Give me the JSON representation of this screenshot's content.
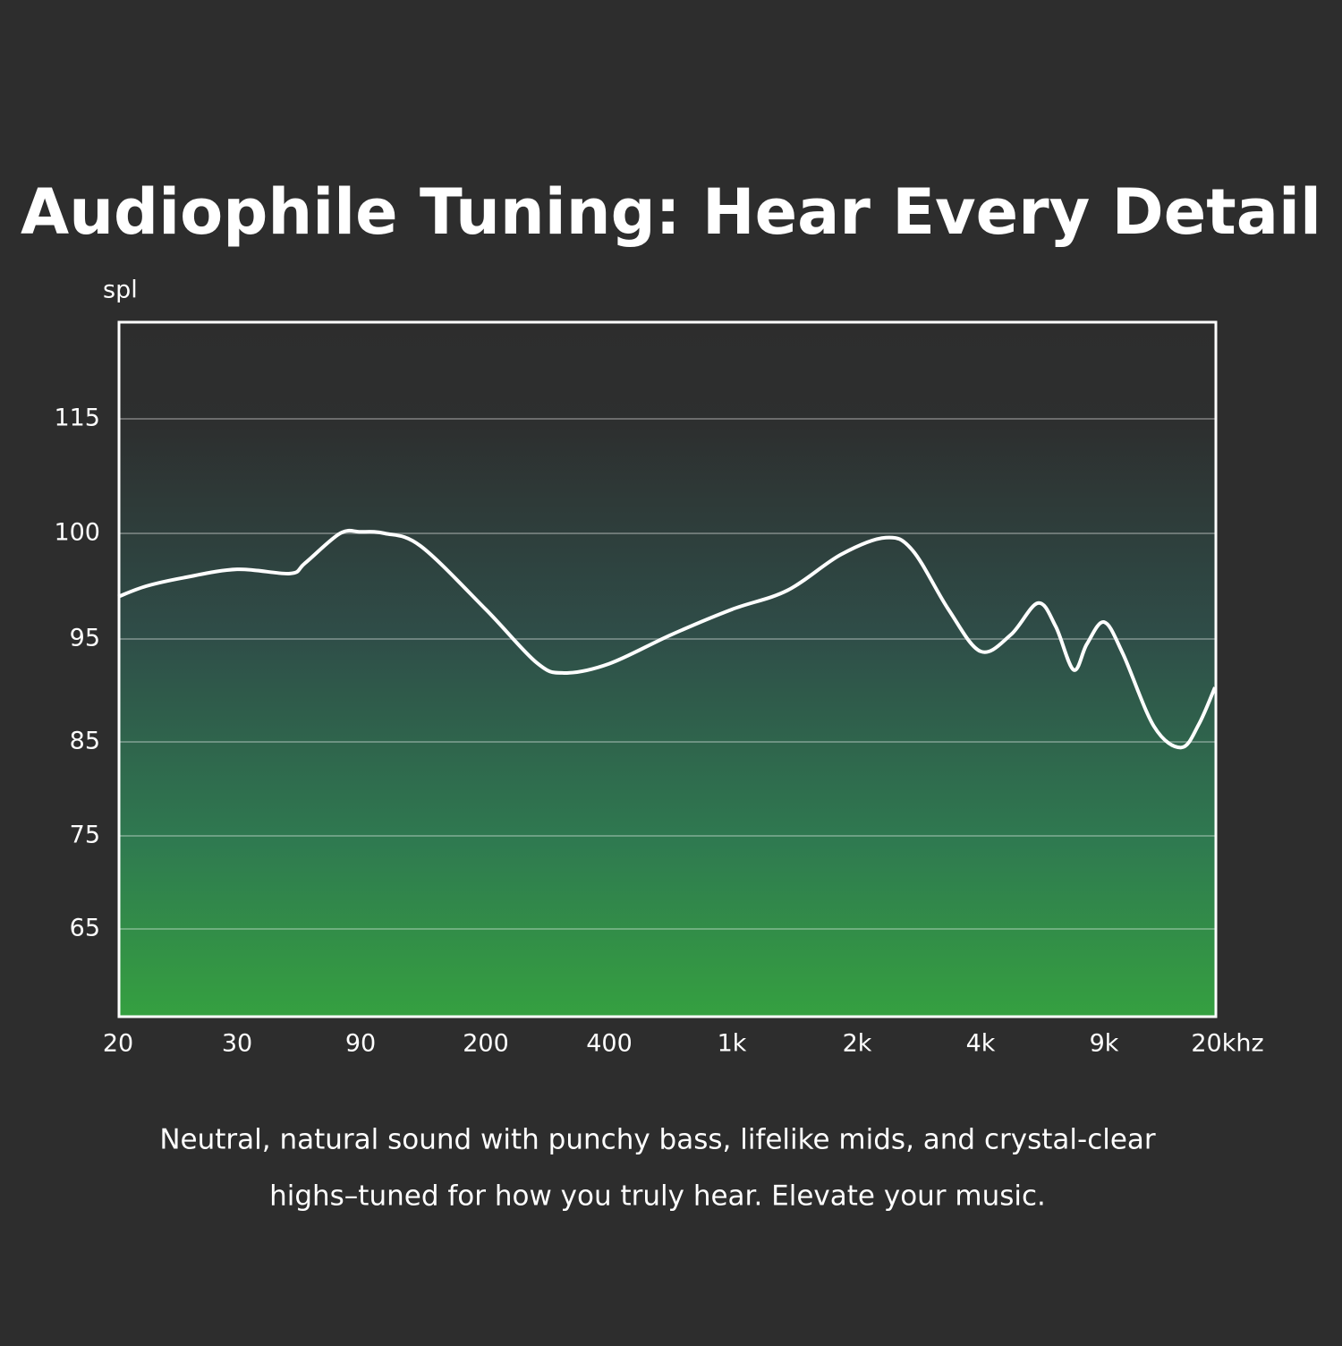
{
  "chart_data": {
    "type": "line",
    "title": "Audiophile Tuning: Hear Every Detail",
    "y_label": "spl",
    "description": [
      "Neutral, natural sound with punchy bass, lifelike mids, and crystal-clear",
      "highs–tuned for how you truly hear. Elevate your music."
    ],
    "x": [
      20,
      22,
      25,
      30,
      48,
      55,
      75,
      90,
      105,
      132,
      200,
      266,
      310,
      400,
      635,
      1000,
      1360,
      1829,
      2350,
      2730,
      3340,
      4000,
      4880,
      5830,
      6550,
      7370,
      8040,
      9000,
      10300,
      12900,
      15700,
      17800,
      20000
    ],
    "values": [
      97,
      97.5,
      97.9,
      98.3,
      98.1,
      98.6,
      100,
      100.2,
      100,
      99.4,
      96.4,
      92.7,
      91.7,
      92.6,
      95.2,
      96.4,
      97.3,
      99,
      99.8,
      99.2,
      96.4,
      93.8,
      95.2,
      96.7,
      95.6,
      92,
      94.5,
      95.8,
      93.6,
      86.5,
      84.4,
      86.7,
      90.3
    ],
    "color": "#ffffff",
    "xlim": [
      20,
      20000
    ],
    "xticks": [
      20,
      30,
      90,
      200,
      400,
      {
        "value": 1000,
        "label": "1k"
      },
      {
        "value": 2000,
        "label": "2k"
      },
      {
        "value": 4000,
        "label": "4k"
      },
      {
        "value": 9000,
        "label": "9k"
      },
      {
        "value": 20000,
        "label": "20khz"
      }
    ],
    "ylim": [
      56,
      128
    ],
    "yticks": [
      115,
      100,
      95,
      85,
      75,
      65
    ],
    "grid": true
  }
}
